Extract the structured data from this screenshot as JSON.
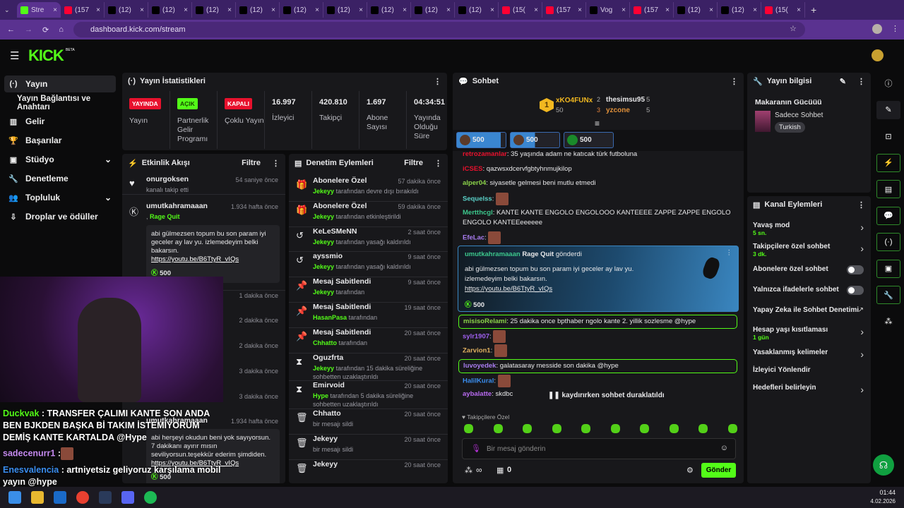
{
  "browser": {
    "tabs": [
      {
        "label": "Stre",
        "icon": "kick-icon",
        "color": "#53fc18",
        "active": true
      },
      {
        "label": "(157",
        "icon": "youtube-icon",
        "color": "#ff0033"
      },
      {
        "label": "(12)",
        "icon": "x-icon",
        "color": "#000000"
      },
      {
        "label": "(12)",
        "icon": "x-icon",
        "color": "#000000"
      },
      {
        "label": "(12)",
        "icon": "x-icon",
        "color": "#000000"
      },
      {
        "label": "(12)",
        "icon": "x-icon",
        "color": "#000000"
      },
      {
        "label": "(12)",
        "icon": "x-icon",
        "color": "#000000"
      },
      {
        "label": "(12)",
        "icon": "x-icon",
        "color": "#000000"
      },
      {
        "label": "(12)",
        "icon": "x-icon",
        "color": "#000000"
      },
      {
        "label": "(12)",
        "icon": "x-icon",
        "color": "#000000"
      },
      {
        "label": "(12)",
        "icon": "x-icon",
        "color": "#000000"
      },
      {
        "label": "(15(",
        "icon": "youtube-icon",
        "color": "#ff0033"
      },
      {
        "label": "(157",
        "icon": "youtube-icon",
        "color": "#ff0033"
      },
      {
        "label": "Vog",
        "icon": "tiktok-icon",
        "color": "#000000"
      },
      {
        "label": "(157",
        "icon": "youtube-icon",
        "color": "#ff0033"
      },
      {
        "label": "(12)",
        "icon": "x-icon",
        "color": "#000000"
      },
      {
        "label": "(12)",
        "icon": "x-icon",
        "color": "#000000"
      },
      {
        "label": "(15(",
        "icon": "youtube-icon",
        "color": "#ff0033"
      }
    ],
    "url": "dashboard.kick.com/stream"
  },
  "brand": {
    "logo": "KICK",
    "beta": "BETA",
    "accent": "#53fc18"
  },
  "sidebar": {
    "items": [
      {
        "label": "Yayın",
        "icon": "broadcast-icon",
        "active": true
      },
      {
        "label": "Yayın Bağlantısı ve Anahtarı"
      },
      {
        "label": "Gelir",
        "icon": "chart-icon"
      },
      {
        "label": "Başarılar",
        "icon": "trophy-icon"
      },
      {
        "label": "Stüdyo",
        "icon": "studio-icon",
        "expandable": true
      },
      {
        "label": "Denetleme",
        "icon": "wrench-icon"
      },
      {
        "label": "Topluluk",
        "icon": "community-icon",
        "expandable": true
      },
      {
        "label": "Droplar ve ödüller",
        "icon": "drops-icon"
      }
    ]
  },
  "stats": {
    "title": "Yayın İstatistikleri",
    "items": [
      {
        "badge": "YAYINDA",
        "badge_color": "#e8112d",
        "label": "Yayın"
      },
      {
        "badge": "AÇIK",
        "badge_color": "#53fc18",
        "label": "Partnerlik Gelir Programı"
      },
      {
        "badge": "KAPALI",
        "badge_color": "#e8112d",
        "label": "Çoklu Yayın"
      },
      {
        "value": "16.997",
        "label": "İzleyici"
      },
      {
        "value": "420.810",
        "label": "Takipçi"
      },
      {
        "value": "1.697",
        "label": "Abone Sayısı"
      },
      {
        "value": "04:34:51",
        "label": "Yayında Olduğu Süre"
      }
    ]
  },
  "activity": {
    "title": "Etkinlik Akışı",
    "filter": "Filtre",
    "items": [
      {
        "name": "onurgoksen",
        "time": "54 saniye önce",
        "sub": "kanalı takip etti",
        "icon": "heart-icon"
      },
      {
        "name": "umutkahramaaan",
        "time": "1.934 hafta önce",
        "reward": "Rage Quit",
        "message": "abi gülmezsen topum bu son param iyi geceler ay lav yu. izlemedeyim belki bakarsın.",
        "link": "https://youtu.be/B6TtyR_vIQs",
        "amount": "500",
        "sent": "gönderdi",
        "icon": "kick-icon"
      },
      {
        "time": "1 dakika önce"
      },
      {
        "time": "2 dakika önce"
      },
      {
        "time": "2 dakika önce"
      },
      {
        "time": "3 dakika önce"
      },
      {
        "time": "3 dakika önce"
      },
      {
        "name": "umutkahramaaan",
        "time": "1.934 hafta önce",
        "message": "abi herşeyi okudun beni yok sayıyorsun. 7 dakikanı ayırır mısın seviliyorsun.teşekkür ederim şimdiden.",
        "link": "https://youtu.be/B6TtyR_vIQs",
        "amount": "500"
      }
    ]
  },
  "moderation": {
    "title": "Denetim Eylemleri",
    "filter": "Filtre",
    "items": [
      {
        "name": "Abonelere Özel",
        "time": "57 dakika önce",
        "user": "Jekeyy",
        "sub": "tarafından devre dışı bırakıldı",
        "icon": "gift-icon"
      },
      {
        "name": "Abonelere Özel",
        "time": "59 dakika önce",
        "user": "Jekeyy",
        "sub": "tarafından etkinleştirildi",
        "icon": "gift-icon"
      },
      {
        "name": "KeLeSMeNN",
        "time": "2 saat önce",
        "user": "Jekeyy",
        "sub": "tarafından yasağı kaldırıldı",
        "icon": "undo-icon"
      },
      {
        "name": "ayssmio",
        "time": "9 saat önce",
        "user": "Jekeyy",
        "sub": "tarafından yasağı kaldırıldı",
        "icon": "undo-icon"
      },
      {
        "name": "Mesaj Sabitlendi",
        "time": "9 saat önce",
        "user": "Jekeyy",
        "sub": "tarafından",
        "icon": "pin-icon"
      },
      {
        "name": "Mesaj Sabitlendi",
        "time": "19 saat önce",
        "user": "HasanPasa",
        "sub": "tarafından",
        "icon": "pin-icon"
      },
      {
        "name": "Mesaj Sabitlendi",
        "time": "20 saat önce",
        "user": "Chhatto",
        "sub": "tarafından",
        "icon": "pin-icon"
      },
      {
        "name": "Oguzfrta",
        "time": "20 saat önce",
        "user": "Jekeyy",
        "sub": "tarafından 15 dakika süreliğine sohbetten uzaklaştırıldı",
        "icon": "hourglass-icon"
      },
      {
        "name": "Emirvoid",
        "time": "20 saat önce",
        "user": "Hype",
        "sub": "tarafından 5 dakika süreliğine sohbetten uzaklaştırıldı",
        "icon": "hourglass-icon"
      },
      {
        "name": "Chhatto",
        "time": "20 saat önce",
        "sub": "bir mesajı sildi",
        "icon": "trash-icon"
      },
      {
        "name": "Jekeyy",
        "time": "20 saat önce",
        "sub": "bir mesajı sildi",
        "icon": "trash-icon"
      },
      {
        "name": "Jekeyy",
        "time": "20 saat önce",
        "icon": "trash-icon"
      }
    ]
  },
  "chat": {
    "title": "Sohbet",
    "leaderboard": [
      {
        "rank": "1",
        "name": "xKO4FUNx",
        "count": "50"
      },
      {
        "rank": "2",
        "name": "thesimsu95",
        "count": "5"
      },
      {
        "rank": "3",
        "name": "yzcone",
        "count": "5"
      }
    ],
    "pins": [
      {
        "amount": "500",
        "fill": 0.9
      },
      {
        "amount": "500",
        "fill": 0.5
      },
      {
        "amount": "500",
        "fill": 0
      }
    ],
    "messages": [
      {
        "user": "retrozamanlar",
        "color": "#e8112d",
        "text": ": 35 yaşında adam ne katıcak türk futboluna"
      },
      {
        "user": "iCSES",
        "color": "#e8112d",
        "text": ": qazwsxdcervfgbtyhnmujkilop"
      },
      {
        "user": "alper04",
        "color": "#8bd34a",
        "text": ": siyasetle gelmesi beni mutlu etmedi"
      },
      {
        "user": "Sequelss",
        "color": "#5ad1c8",
        "text": ":"
      },
      {
        "user": "Mertthcgl",
        "color": "#3cc78c",
        "text": ": KANTE KANTE ENGOLO ENGOLOOO KANTEEEE ZAPPE ZAPPE ENGOLO ENGOLO KANTEEeeeeee"
      },
      {
        "user": "EfeLac",
        "color": "#a97cf0",
        "text": ":"
      }
    ],
    "reward": {
      "user": "umutkahramaaan",
      "title": "Rage Quit",
      "sent": "gönderdi",
      "message": "abi gülmezsen topum bu son param iyi geceler ay lav yu.",
      "message2": "izlemedeyim belki bakarsın.",
      "link": "https://youtu.be/B6TtyR_vIQs",
      "amount": "500"
    },
    "messages2": [
      {
        "user": "misisoRelami",
        "color": "#8bd34a",
        "text": ": 25 dakika once bpthaber ngolo kante 2. yillik sozlesme @hype",
        "highlight": true
      },
      {
        "user": "sylr1907",
        "color": "#a060f0",
        "text": ":"
      },
      {
        "user": "Zarvion1",
        "color": "#e0b060",
        "text": ":"
      },
      {
        "user": "luvoyedek",
        "color": "#a97cf0",
        "text": ": galatasaray messide son dakika @hype",
        "highlight": true
      },
      {
        "user": "HalilKural",
        "color": "#3a8ef0",
        "text": ":"
      },
      {
        "user": "aybalatte",
        "color": "#b86af0",
        "text": ": skdbc"
      }
    ],
    "paused": "kaydırırken sohbet duraklatıldı",
    "emote_section": "Takipçilere Özel",
    "input_placeholder": "Bir mesaj gönderin",
    "points": "∞",
    "store_count": "0",
    "send": "Gönder"
  },
  "stream_info": {
    "title": "Yayın bilgisi",
    "stream_title": "Makaranın Gücüüü",
    "category": "Sadece Sohbet",
    "language": "Turkish"
  },
  "channel_actions": {
    "title": "Kanal Eylemleri",
    "items": [
      {
        "label": "Yavaş mod",
        "sub": "5 sn.",
        "control": "arrow"
      },
      {
        "label": "Takipçilere özel sohbet",
        "sub": "3 dk.",
        "control": "arrow"
      },
      {
        "label": "Abonelere özel sohbet",
        "control": "toggle",
        "on": false
      },
      {
        "label": "Yalnızca ifadelerle sohbet",
        "control": "toggle",
        "on": false
      },
      {
        "label": "Yapay Zeka ile Sohbet Denetimi",
        "control": "external"
      },
      {
        "label": "Hesap yaşı kısıtlaması",
        "sub": "1 gün",
        "control": "arrow"
      },
      {
        "label": "Yasaklanmış kelimeler",
        "control": "arrow"
      },
      {
        "label": "İzleyici Yönlendir"
      },
      {
        "label": "Hedefleri belirleyin",
        "control": "arrow"
      }
    ]
  },
  "overlay_chat": [
    {
      "user": "Duckvak",
      "color": "#53fc18",
      "text": " : TRANSFER ÇALIMI KANTE SON ANDA BEN BJKDEN BAŞKA Bİ TAKIM İSTEMİYORUM DEMİŞ KANTE KARTALDA @Hype"
    },
    {
      "user": "sadecenurr1",
      "color": "#c58af0",
      "text": " :"
    },
    {
      "user": "Enesvalencia",
      "color": "#3a8ef0",
      "text": " : artniyetsiz geliyoruz karşılama mobil yayın @hype"
    }
  ],
  "taskbar": {
    "time": "01:44",
    "date": "4.02.2026"
  }
}
